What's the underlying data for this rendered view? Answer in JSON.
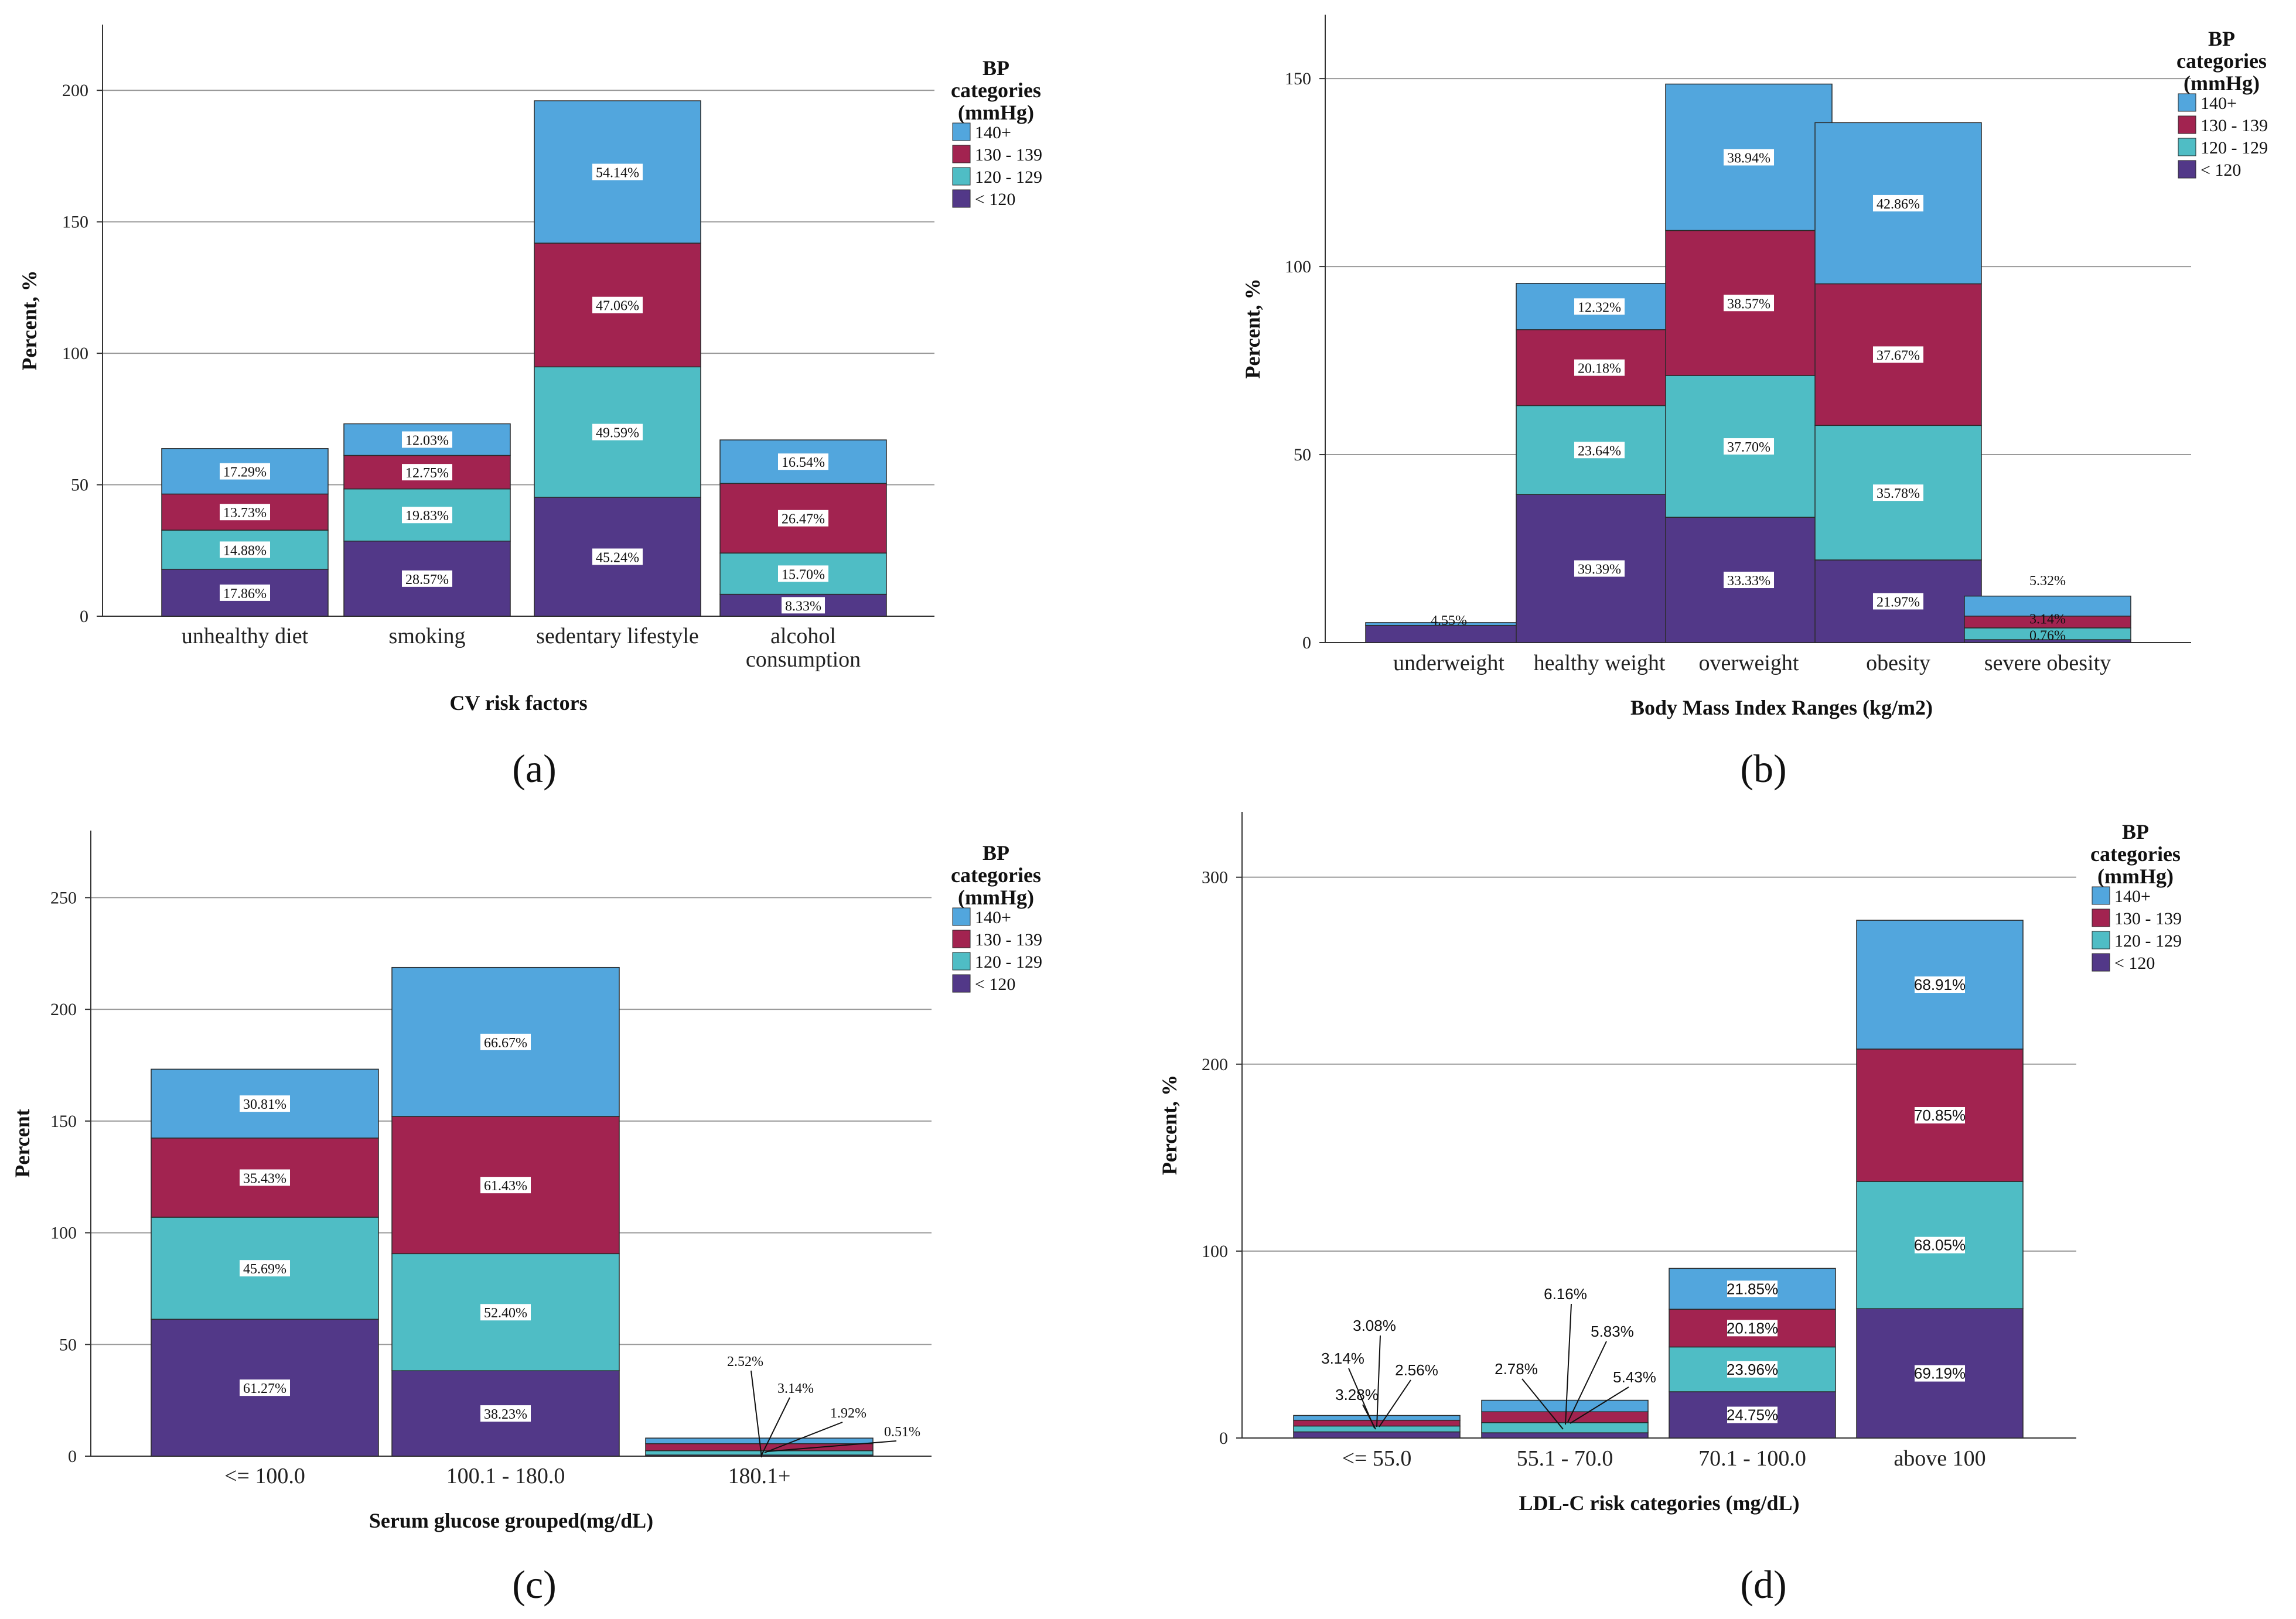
{
  "colors": {
    "lt120": "#523888",
    "120_129": "#4fbdc5",
    "130_139": "#a22350",
    "140plus": "#52a6dd"
  },
  "legend": {
    "title_lines": [
      "BP",
      "categories",
      "(mmHg)"
    ],
    "items": [
      {
        "label": "140+",
        "color_key": "140plus"
      },
      {
        "label": "130 - 139",
        "color_key": "130_139"
      },
      {
        "label": "120 - 129",
        "color_key": "120_129"
      },
      {
        "label": "< 120",
        "color_key": "lt120"
      }
    ]
  },
  "chart_data": [
    {
      "panel": "(a)",
      "type": "bar",
      "stacked": true,
      "xlabel": "CV risk factors",
      "ylabel": "Percent, %",
      "ylim": [
        0,
        225
      ],
      "yticks": [
        0,
        50,
        100,
        150,
        200
      ],
      "categories": [
        [
          "unhealthy diet"
        ],
        [
          "smoking"
        ],
        [
          "sedentary lifestyle"
        ],
        [
          "alcohol",
          "consumption"
        ]
      ],
      "series": [
        {
          "name": "< 120",
          "color_key": "lt120",
          "values": [
            17.86,
            28.57,
            45.24,
            8.33
          ],
          "labels": [
            "17.86%",
            "28.57%",
            "45.24%",
            "8.33%"
          ]
        },
        {
          "name": "120 - 129",
          "color_key": "120_129",
          "values": [
            14.88,
            19.83,
            49.59,
            15.7
          ],
          "labels": [
            "14.88%",
            "19.83%",
            "49.59%",
            "15.70%"
          ]
        },
        {
          "name": "130 - 139",
          "color_key": "130_139",
          "values": [
            13.73,
            12.75,
            47.06,
            26.47
          ],
          "labels": [
            "13.73%",
            "12.75%",
            "47.06%",
            "26.47%"
          ]
        },
        {
          "name": "140+",
          "color_key": "140plus",
          "values": [
            17.29,
            12.03,
            54.14,
            16.54
          ],
          "labels": [
            "17.29%",
            "12.03%",
            "54.14%",
            "16.54%"
          ]
        }
      ],
      "legend_position": "top-right"
    },
    {
      "panel": "(b)",
      "type": "bar",
      "stacked": true,
      "xlabel": "Body Mass Index Ranges (kg/m2)",
      "ylabel": "Percent, %",
      "ylim": [
        0,
        167
      ],
      "yticks": [
        0,
        50,
        100,
        150
      ],
      "categories": [
        [
          "underweight"
        ],
        [
          "healthy weight"
        ],
        [
          "overweight"
        ],
        [
          "obesity"
        ],
        [
          "severe obesity"
        ]
      ],
      "series": [
        {
          "name": "< 120",
          "color_key": "lt120",
          "values": [
            4.55,
            39.39,
            33.33,
            21.97,
            0.76
          ],
          "labels": [
            "4.55%",
            "39.39%",
            "33.33%",
            "21.97%",
            "0.76%"
          ]
        },
        {
          "name": "120 - 129",
          "color_key": "120_129",
          "values": [
            0.0,
            23.64,
            37.7,
            35.78,
            3.14
          ],
          "labels": [
            "",
            "23.64%",
            "37.70%",
            "35.78%",
            "3.14%"
          ]
        },
        {
          "name": "130 - 139",
          "color_key": "130_139",
          "values": [
            0.0,
            20.18,
            38.57,
            37.67,
            3.14
          ],
          "labels": [
            "",
            "20.18%",
            "38.57%",
            "37.67%",
            ""
          ]
        },
        {
          "name": "140+",
          "color_key": "140plus",
          "values": [
            0.76,
            12.32,
            38.94,
            42.86,
            5.32
          ],
          "labels": [
            "",
            "12.32%",
            "38.94%",
            "42.86%",
            "5.32%"
          ]
        }
      ],
      "legend_position": "top-right"
    },
    {
      "panel": "(c)",
      "type": "bar",
      "stacked": true,
      "xlabel": "Serum glucose grouped(mg/dL)",
      "ylabel": "Percent",
      "ylim": [
        0,
        280
      ],
      "yticks": [
        0,
        50,
        100,
        150,
        200,
        250
      ],
      "categories": [
        [
          "<= 100.0"
        ],
        [
          "100.1 - 180.0"
        ],
        [
          "180.1+"
        ]
      ],
      "series": [
        {
          "name": "< 120",
          "color_key": "lt120",
          "values": [
            61.27,
            38.23,
            0.51
          ],
          "labels": [
            "61.27%",
            "38.23%",
            "0.51%"
          ]
        },
        {
          "name": "120 - 129",
          "color_key": "120_129",
          "values": [
            45.69,
            52.4,
            1.92
          ],
          "labels": [
            "45.69%",
            "52.40%",
            "1.92%"
          ]
        },
        {
          "name": "130 - 139",
          "color_key": "130_139",
          "values": [
            35.43,
            61.43,
            3.14
          ],
          "labels": [
            "35.43%",
            "61.43%",
            "3.14%"
          ]
        },
        {
          "name": "140+",
          "color_key": "140plus",
          "values": [
            30.81,
            66.67,
            2.52
          ],
          "labels": [
            "30.81%",
            "66.67%",
            "2.52%"
          ]
        }
      ],
      "legend_position": "top-right"
    },
    {
      "panel": "(d)",
      "type": "bar",
      "stacked": true,
      "xlabel": "LDL-C risk categories (mg/dL)",
      "ylabel": "Percent, %",
      "ylim": [
        0,
        335
      ],
      "yticks": [
        0,
        100,
        200,
        300
      ],
      "categories": [
        [
          "<= 55.0"
        ],
        [
          "55.1 - 70.0"
        ],
        [
          "70.1 - 100.0"
        ],
        [
          "above 100"
        ]
      ],
      "series": [
        {
          "name": "< 120",
          "color_key": "lt120",
          "values": [
            3.28,
            2.78,
            24.75,
            69.19
          ],
          "labels": [
            "3.28%",
            "2.78%",
            "24.75%",
            "69.19%"
          ]
        },
        {
          "name": "120 - 129",
          "color_key": "120_129",
          "values": [
            3.14,
            5.43,
            23.96,
            68.05
          ],
          "labels": [
            "3.14%",
            "5.43%",
            "23.96%",
            "68.05%"
          ]
        },
        {
          "name": "130 - 139",
          "color_key": "130_139",
          "values": [
            3.08,
            5.83,
            20.18,
            70.85
          ],
          "labels": [
            "3.08%",
            "5.83%",
            "20.18%",
            "70.85%"
          ]
        },
        {
          "name": "140+",
          "color_key": "140plus",
          "values": [
            2.56,
            6.16,
            21.85,
            68.91
          ],
          "labels": [
            "2.56%",
            "6.16%",
            "21.85%",
            "68.91%"
          ]
        }
      ],
      "legend_position": "top-right"
    }
  ]
}
